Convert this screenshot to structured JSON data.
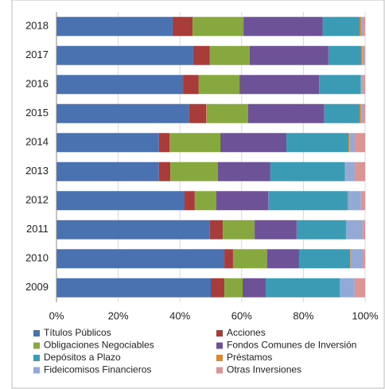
{
  "chart_data": {
    "type": "bar",
    "orientation": "horizontal",
    "stacked": true,
    "categories": [
      "2018",
      "2017",
      "2016",
      "2015",
      "2014",
      "2013",
      "2012",
      "2011",
      "2010",
      "2009"
    ],
    "series": [
      {
        "name": "Títulos Públicos",
        "color": "#4a72b0",
        "values": [
          37.6,
          44.3,
          41.0,
          43.0,
          33.2,
          33.2,
          41.5,
          49.7,
          54.4,
          50.0
        ]
      },
      {
        "name": "Acciones",
        "color": "#a83c3a",
        "values": [
          6.5,
          5.4,
          5.1,
          5.5,
          3.4,
          3.7,
          3.3,
          4.2,
          2.8,
          4.4
        ]
      },
      {
        "name": "Obligaciones Negociables",
        "color": "#87a83f",
        "values": [
          16.5,
          12.9,
          13.2,
          13.6,
          16.5,
          15.4,
          7.0,
          10.3,
          11.1,
          5.9
        ]
      },
      {
        "name": "Fondos Comunes de Inversión",
        "color": "#6e5298",
        "values": [
          25.7,
          25.5,
          25.8,
          24.5,
          21.4,
          17.0,
          16.8,
          13.6,
          10.3,
          7.5
        ]
      },
      {
        "name": "Depósitos a Plazo",
        "color": "#3b9ab4",
        "values": [
          11.9,
          10.6,
          13.4,
          11.6,
          20.1,
          24.0,
          25.7,
          16.0,
          16.5,
          24.0
        ]
      },
      {
        "name": "Préstamos",
        "color": "#e0862f",
        "values": [
          0.5,
          0.3,
          0.3,
          0.4,
          0.3,
          0.3,
          0.3,
          0.2,
          0.2,
          0.2
        ]
      },
      {
        "name": "Fideicomisos Financieros",
        "color": "#93a9d6",
        "values": [
          0.5,
          0.5,
          0.5,
          0.6,
          1.5,
          2.8,
          3.9,
          5.0,
          3.8,
          4.6
        ]
      },
      {
        "name": "Otras Inversiones",
        "color": "#d99694",
        "values": [
          0.8,
          0.5,
          0.7,
          0.8,
          3.6,
          3.6,
          1.5,
          1.0,
          0.9,
          3.4
        ]
      }
    ],
    "xlim": [
      0,
      100
    ],
    "xticks": [
      {
        "value": 0,
        "label": "0%"
      },
      {
        "value": 20,
        "label": "20%"
      },
      {
        "value": 40,
        "label": "40%"
      },
      {
        "value": 60,
        "label": "60%"
      },
      {
        "value": 80,
        "label": "80%"
      },
      {
        "value": 100,
        "label": "100%"
      }
    ],
    "grid": true
  }
}
